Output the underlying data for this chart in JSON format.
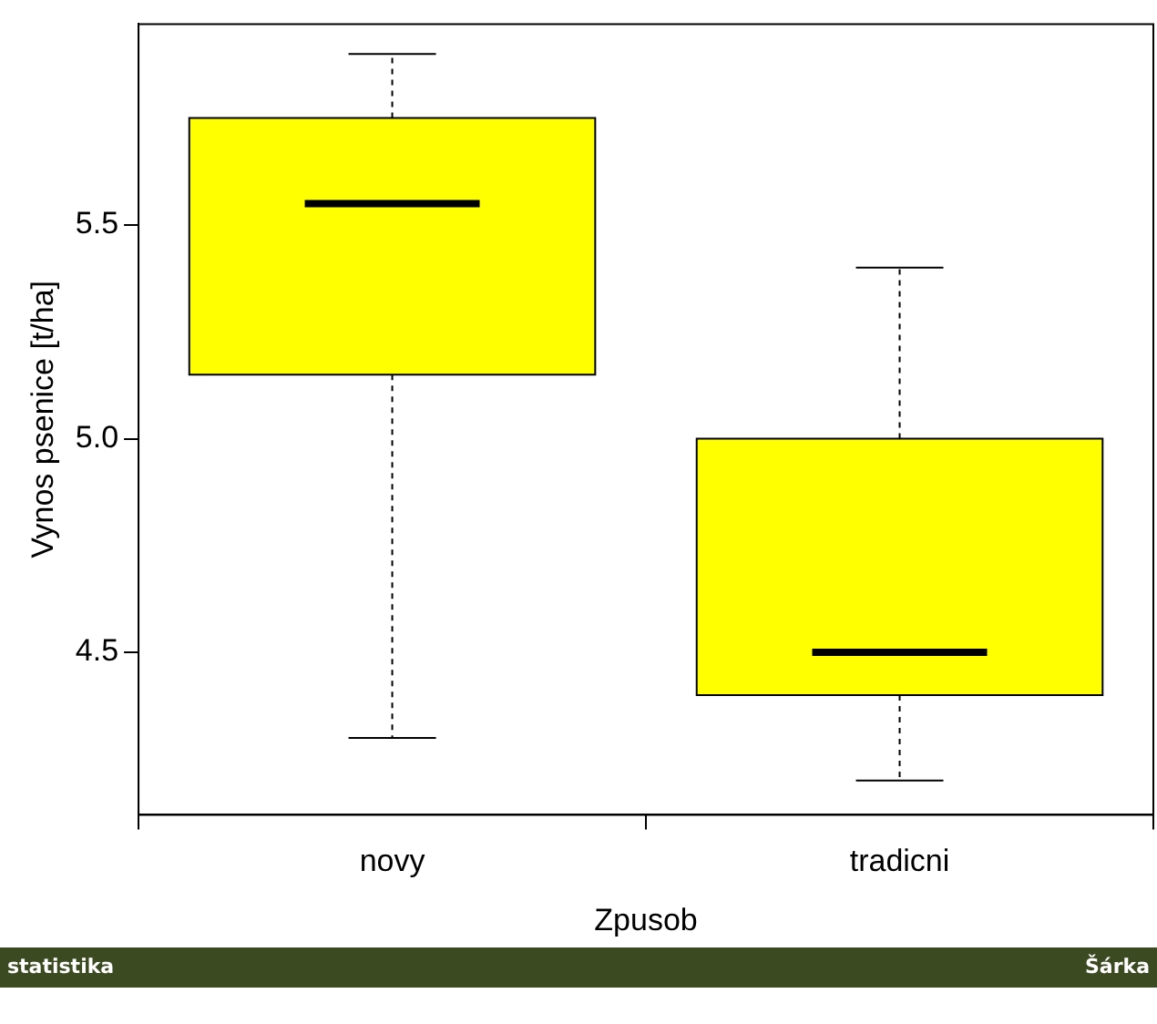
{
  "chart_data": {
    "type": "box",
    "xlabel": "Zpusob",
    "ylabel": "Vynos psenice [t/ha]",
    "categories": [
      "novy",
      "tradicni"
    ],
    "boxes": [
      {
        "low": 4.3,
        "q1": 5.15,
        "median": 5.55,
        "q3": 5.75,
        "high": 5.9
      },
      {
        "low": 4.2,
        "q1": 4.4,
        "median": 4.5,
        "q3": 5.0,
        "high": 5.4
      }
    ],
    "color": "#ffff00",
    "ylim": [
      4.12,
      5.97
    ],
    "yticks": [
      {
        "value": 4.5,
        "label": "4.5"
      },
      {
        "value": 5.0,
        "label": "5.0"
      },
      {
        "value": 5.5,
        "label": "5.5"
      }
    ],
    "grid": false,
    "legend": false,
    "annotations": [
      "statistika",
      "Šárka"
    ]
  }
}
